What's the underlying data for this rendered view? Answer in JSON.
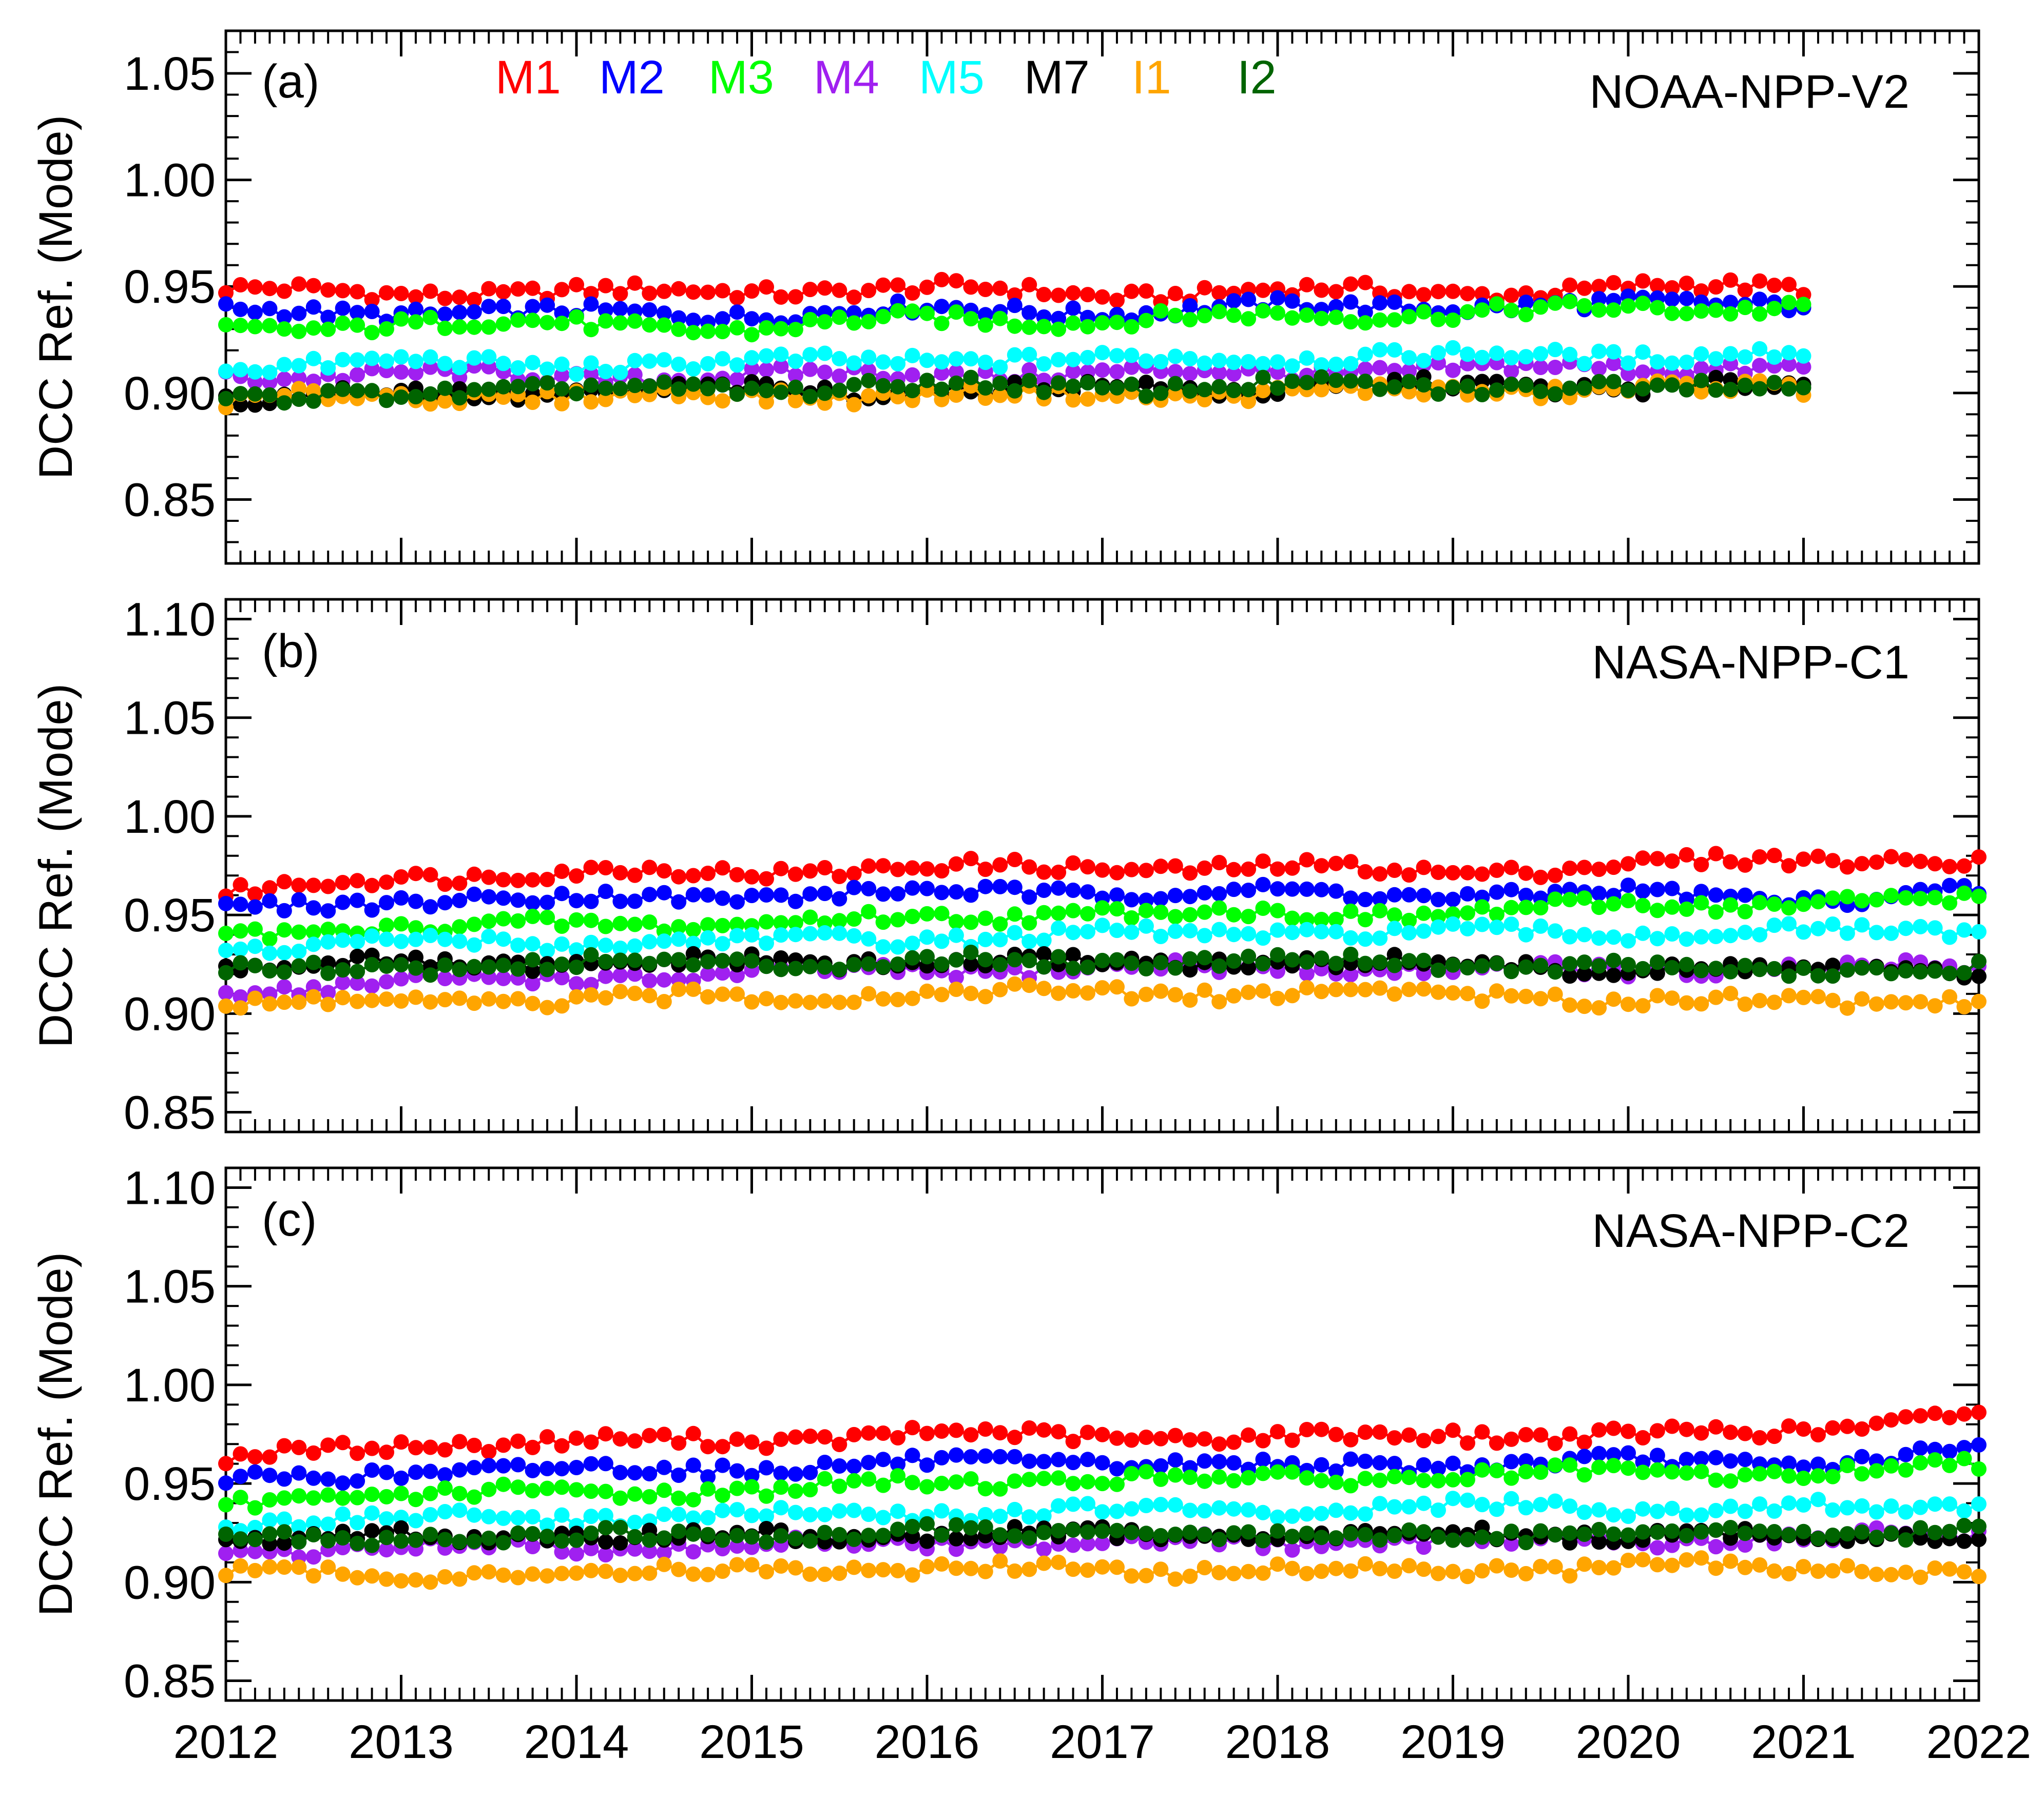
{
  "chart_data": [
    {
      "type": "scatter",
      "panel_label": "(a)",
      "title": "NOAA-NPP-V2",
      "xlabel": "",
      "ylabel": "DCC Ref. (Mode)",
      "xlim": [
        2012,
        2022
      ],
      "ylim": [
        0.82,
        1.07
      ],
      "yticks": [
        0.85,
        0.9,
        0.95,
        1.0,
        1.05
      ],
      "ytick_labels": [
        "0.85",
        "0.90",
        "0.95",
        "1.00",
        "1.05"
      ],
      "end_year": 2021.0,
      "series": [
        {
          "name": "M1",
          "color": "#ff0000",
          "values": [
            0.948,
            0.947,
            0.947,
            0.948,
            0.949,
            0.946,
            0.948,
            0.947,
            0.949,
            0.95,
            0.951
          ]
        },
        {
          "name": "M2",
          "color": "#0000ff",
          "values": [
            0.938,
            0.938,
            0.937,
            0.937,
            0.939,
            0.938,
            0.94,
            0.941,
            0.941,
            0.943,
            0.942
          ]
        },
        {
          "name": "M3",
          "color": "#00ff00",
          "values": [
            0.929,
            0.933,
            0.932,
            0.93,
            0.935,
            0.934,
            0.936,
            0.938,
            0.939,
            0.941,
            0.943
          ]
        },
        {
          "name": "M4",
          "color": "#a020f0",
          "values": [
            0.908,
            0.909,
            0.907,
            0.908,
            0.909,
            0.909,
            0.91,
            0.911,
            0.912,
            0.912,
            0.913
          ]
        },
        {
          "name": "M5",
          "color": "#00ffff",
          "values": [
            0.913,
            0.914,
            0.913,
            0.914,
            0.916,
            0.915,
            0.917,
            0.917,
            0.918,
            0.918,
            0.917
          ]
        },
        {
          "name": "M7",
          "color": "#000000",
          "values": [
            0.897,
            0.9,
            0.9,
            0.901,
            0.901,
            0.902,
            0.902,
            0.903,
            0.903,
            0.903,
            0.902
          ]
        },
        {
          "name": "I1",
          "color": "#ffa500",
          "values": [
            0.896,
            0.899,
            0.898,
            0.899,
            0.899,
            0.899,
            0.9,
            0.901,
            0.902,
            0.902,
            0.9
          ]
        },
        {
          "name": "I2",
          "color": "#006400",
          "values": [
            0.895,
            0.901,
            0.901,
            0.902,
            0.903,
            0.903,
            0.903,
            0.903,
            0.903,
            0.904,
            0.902
          ]
        }
      ]
    },
    {
      "type": "scatter",
      "panel_label": "(b)",
      "title": "NASA-NPP-C1",
      "xlabel": "",
      "ylabel": "DCC Ref. (Mode)",
      "xlim": [
        2012,
        2022
      ],
      "ylim": [
        0.84,
        1.11
      ],
      "yticks": [
        0.85,
        0.9,
        0.95,
        1.0,
        1.05,
        1.1
      ],
      "ytick_labels": [
        "0.85",
        "0.90",
        "0.95",
        "1.00",
        "1.05",
        "1.10"
      ],
      "end_year": 2022.0,
      "series": [
        {
          "name": "M1",
          "color": "#ff0000",
          "values": [
            0.96,
            0.97,
            0.971,
            0.972,
            0.974,
            0.974,
            0.974,
            0.972,
            0.975,
            0.979,
            0.977
          ]
        },
        {
          "name": "M2",
          "color": "#0000ff",
          "values": [
            0.952,
            0.958,
            0.958,
            0.96,
            0.961,
            0.962,
            0.961,
            0.96,
            0.961,
            0.958,
            0.961
          ]
        },
        {
          "name": "M3",
          "color": "#00ff00",
          "values": [
            0.94,
            0.944,
            0.945,
            0.946,
            0.948,
            0.952,
            0.95,
            0.951,
            0.955,
            0.956,
            0.958
          ]
        },
        {
          "name": "M4",
          "color": "#a020f0",
          "values": [
            0.912,
            0.916,
            0.918,
            0.92,
            0.922,
            0.923,
            0.923,
            0.923,
            0.922,
            0.922,
            0.924
          ]
        },
        {
          "name": "M5",
          "color": "#00ffff",
          "values": [
            0.932,
            0.936,
            0.936,
            0.937,
            0.938,
            0.94,
            0.941,
            0.941,
            0.941,
            0.941,
            0.942
          ]
        },
        {
          "name": "M7",
          "color": "#000000",
          "values": [
            0.924,
            0.925,
            0.925,
            0.926,
            0.926,
            0.926,
            0.926,
            0.925,
            0.922,
            0.922,
            0.922
          ]
        },
        {
          "name": "I1",
          "color": "#ffa500",
          "values": [
            0.903,
            0.907,
            0.906,
            0.909,
            0.91,
            0.911,
            0.91,
            0.911,
            0.906,
            0.907,
            0.907
          ]
        },
        {
          "name": "I2",
          "color": "#006400",
          "values": [
            0.922,
            0.924,
            0.925,
            0.926,
            0.926,
            0.927,
            0.927,
            0.926,
            0.923,
            0.922,
            0.922
          ]
        }
      ]
    },
    {
      "type": "scatter",
      "panel_label": "(c)",
      "title": "NASA-NPP-C2",
      "xlabel": "",
      "ylabel": "DCC Ref. (Mode)",
      "xlim": [
        2012,
        2022
      ],
      "ylim": [
        0.84,
        1.11
      ],
      "yticks": [
        0.85,
        0.9,
        0.95,
        1.0,
        1.05,
        1.1
      ],
      "ytick_labels": [
        "0.85",
        "0.90",
        "0.95",
        "1.00",
        "1.05",
        "1.10"
      ],
      "xticks": [
        2012,
        2013,
        2014,
        2015,
        2016,
        2017,
        2018,
        2019,
        2020,
        2021,
        2022
      ],
      "xtick_labels": [
        "2012",
        "2013",
        "2014",
        "2015",
        "2016",
        "2017",
        "2018",
        "2019",
        "2020",
        "2021",
        "2022"
      ],
      "end_year": 2022.0,
      "series": [
        {
          "name": "M1",
          "color": "#ff0000",
          "values": [
            0.962,
            0.97,
            0.971,
            0.972,
            0.975,
            0.974,
            0.973,
            0.975,
            0.974,
            0.977,
            0.986
          ]
        },
        {
          "name": "M2",
          "color": "#0000ff",
          "values": [
            0.951,
            0.956,
            0.957,
            0.958,
            0.96,
            0.961,
            0.958,
            0.96,
            0.961,
            0.96,
            0.966
          ]
        },
        {
          "name": "M3",
          "color": "#00ff00",
          "values": [
            0.94,
            0.945,
            0.945,
            0.947,
            0.95,
            0.953,
            0.952,
            0.954,
            0.955,
            0.955,
            0.959
          ]
        },
        {
          "name": "M4",
          "color": "#a020f0",
          "values": [
            0.915,
            0.918,
            0.918,
            0.919,
            0.92,
            0.921,
            0.92,
            0.921,
            0.921,
            0.922,
            0.924
          ]
        },
        {
          "name": "M5",
          "color": "#00ffff",
          "values": [
            0.93,
            0.932,
            0.933,
            0.933,
            0.935,
            0.936,
            0.936,
            0.938,
            0.938,
            0.937,
            0.938
          ]
        },
        {
          "name": "M7",
          "color": "#000000",
          "values": [
            0.922,
            0.923,
            0.923,
            0.923,
            0.924,
            0.924,
            0.923,
            0.924,
            0.924,
            0.923,
            0.923
          ]
        },
        {
          "name": "I1",
          "color": "#ffa500",
          "values": [
            0.905,
            0.903,
            0.905,
            0.906,
            0.907,
            0.906,
            0.906,
            0.906,
            0.908,
            0.907,
            0.906
          ]
        },
        {
          "name": "I2",
          "color": "#006400",
          "values": [
            0.92,
            0.923,
            0.923,
            0.923,
            0.925,
            0.925,
            0.923,
            0.924,
            0.925,
            0.925,
            0.925
          ]
        }
      ]
    }
  ]
}
